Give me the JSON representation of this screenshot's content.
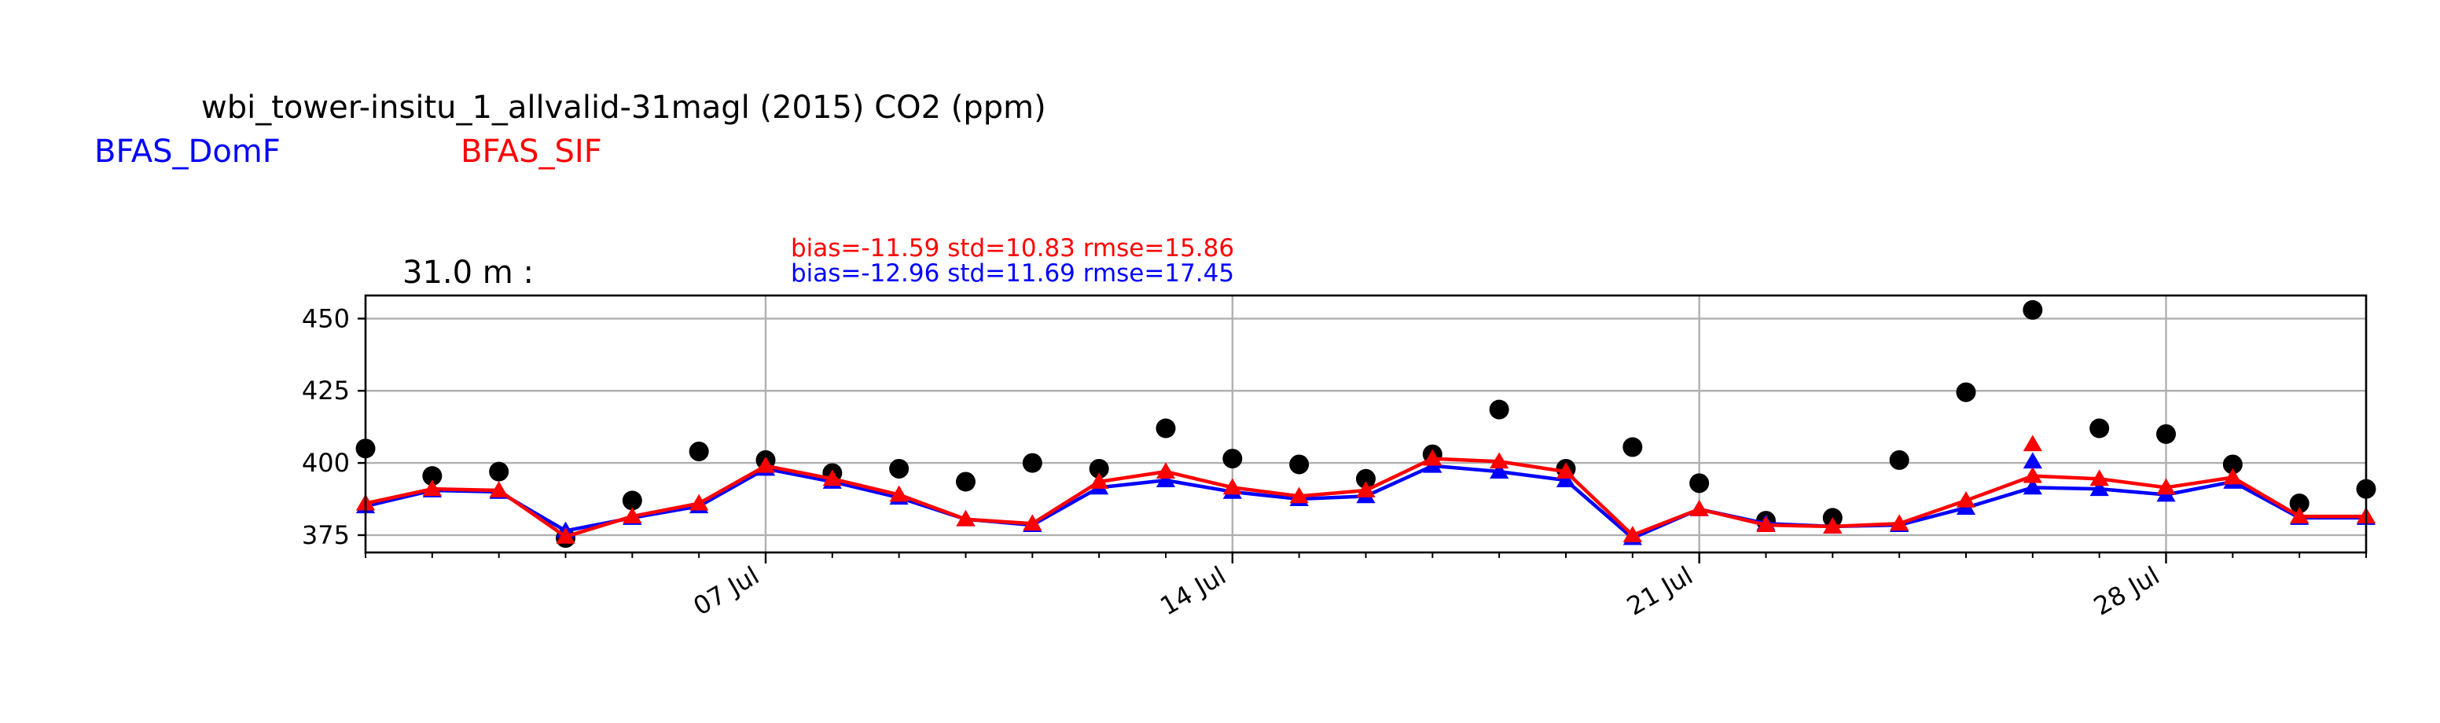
{
  "chart_data": {
    "type": "line",
    "title": "wbi_tower-insitu_1_allvalid-31magl (2015) CO2 (ppm)",
    "subtitle": "31.0 m :",
    "xlabel": "",
    "ylabel": "",
    "x_axis_type": "date",
    "xlim": [
      "2015-07-01",
      "2015-07-31"
    ],
    "ylim": [
      369,
      458
    ],
    "yticks": [
      375,
      400,
      425,
      450
    ],
    "xticks": [
      {
        "date": "2015-07-07",
        "label": "07 Jul"
      },
      {
        "date": "2015-07-14",
        "label": "14 Jul"
      },
      {
        "date": "2015-07-21",
        "label": "21 Jul"
      },
      {
        "date": "2015-07-28",
        "label": "28 Jul"
      }
    ],
    "grid": true,
    "legend_placement": "top-left",
    "stats": {
      "sif": "bias=-11.59 std=10.83 rmse=15.86",
      "domf": "bias=-12.96 std=11.69 rmse=17.45"
    },
    "x": [
      "2015-07-01",
      "2015-07-02",
      "2015-07-03",
      "2015-07-04",
      "2015-07-05",
      "2015-07-06",
      "2015-07-07",
      "2015-07-08",
      "2015-07-09",
      "2015-07-10",
      "2015-07-11",
      "2015-07-12",
      "2015-07-13",
      "2015-07-14",
      "2015-07-15",
      "2015-07-16",
      "2015-07-17",
      "2015-07-18",
      "2015-07-19",
      "2015-07-20",
      "2015-07-21",
      "2015-07-22",
      "2015-07-23",
      "2015-07-24",
      "2015-07-25",
      "2015-07-26",
      "2015-07-27",
      "2015-07-28",
      "2015-07-29",
      "2015-07-30",
      "2015-07-31"
    ],
    "series": [
      {
        "role": "observed",
        "marker": "circle",
        "color": "#000000",
        "values": [
          405,
          395.5,
          397,
          374,
          387,
          404,
          401,
          396.5,
          398,
          393.5,
          400,
          398,
          412,
          401.5,
          399.5,
          394.5,
          403,
          418.5,
          398,
          405.5,
          393,
          380,
          381,
          401,
          424.5,
          453,
          412,
          410,
          399.5,
          386,
          391
        ]
      },
      {
        "name": "BFAS_DomF",
        "marker": "triangle",
        "color": "#0000ff",
        "values": [
          385,
          390.5,
          390,
          376.5,
          381,
          385,
          398,
          393.5,
          388,
          380.5,
          378.5,
          391.5,
          394,
          390,
          387.5,
          388.5,
          399,
          397,
          394,
          374,
          384,
          379,
          378,
          378.5,
          384.5,
          391.5,
          391,
          389,
          393.5,
          381,
          381
        ]
      },
      {
        "name": "BFAS_SIF",
        "marker": "triangle",
        "color": "#ff0000",
        "values": [
          386,
          391,
          390.5,
          374.5,
          381.5,
          386,
          399,
          394.5,
          389,
          380.5,
          379,
          393.5,
          397,
          391.5,
          388.5,
          390.5,
          401.5,
          400.5,
          397,
          375,
          384,
          378.5,
          378,
          379,
          387,
          395.5,
          394.5,
          391.5,
          395,
          381.5,
          381.5
        ]
      }
    ],
    "extra_points": [
      {
        "series": "BFAS_SIF",
        "x": "2015-07-26",
        "value": 406.5
      },
      {
        "series": "BFAS_DomF",
        "x": "2015-07-26",
        "value": 400.5
      }
    ]
  }
}
